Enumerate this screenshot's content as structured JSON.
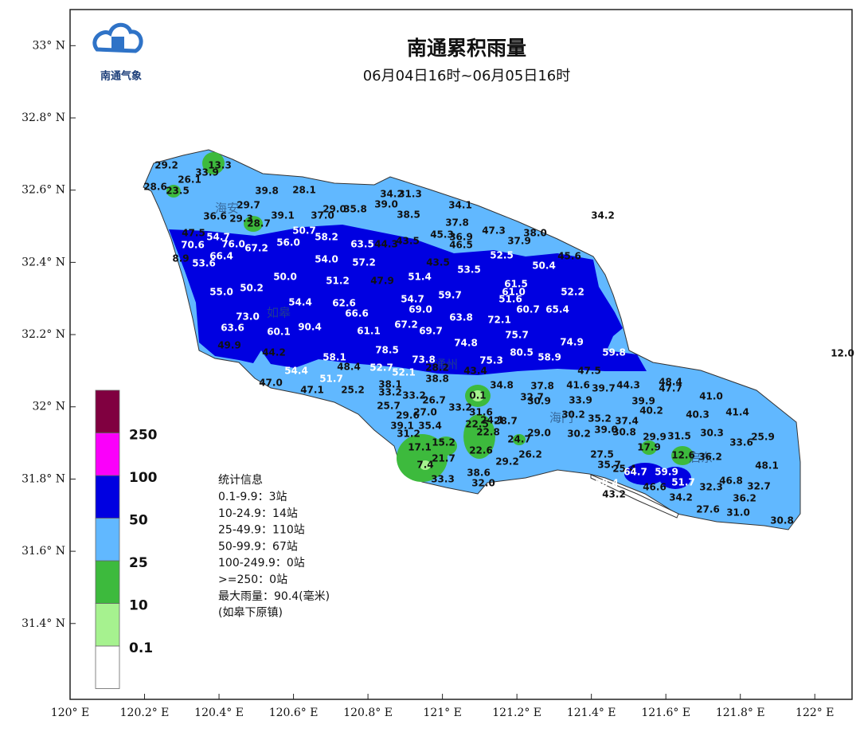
{
  "header": {
    "logo_text": "南通气象",
    "title": "南通累积雨量",
    "subtitle": "06月04日16时~06月05日16时"
  },
  "map": {
    "xlim": [
      120,
      122.1
    ],
    "ylim": [
      31.19,
      33.1
    ],
    "xticks": [
      {
        "value": 120,
        "label": "120° E"
      },
      {
        "value": 120.2,
        "label": "120.2° E"
      },
      {
        "value": 120.4,
        "label": "120.4° E"
      },
      {
        "value": 120.6,
        "label": "120.6° E"
      },
      {
        "value": 120.8,
        "label": "120.8° E"
      },
      {
        "value": 121,
        "label": "121° E"
      },
      {
        "value": 121.2,
        "label": "121.2° E"
      },
      {
        "value": 121.4,
        "label": "121.4° E"
      },
      {
        "value": 121.6,
        "label": "121.6° E"
      },
      {
        "value": 121.8,
        "label": "121.8° E"
      },
      {
        "value": 122,
        "label": "122° E"
      }
    ],
    "yticks": [
      {
        "value": 33,
        "label": "33° N"
      },
      {
        "value": 32.8,
        "label": "32.8° N"
      },
      {
        "value": 32.6,
        "label": "32.6° N"
      },
      {
        "value": 32.4,
        "label": "32.4° N"
      },
      {
        "value": 32.2,
        "label": "32.2° N"
      },
      {
        "value": 32,
        "label": "32° N"
      },
      {
        "value": 31.8,
        "label": "31.8° N"
      },
      {
        "value": 31.6,
        "label": "31.6° N"
      },
      {
        "value": 31.4,
        "label": "31.4° N"
      }
    ],
    "places": [
      "海安",
      "如皋",
      "通州",
      "海门",
      "启东"
    ],
    "stations": [
      "29.2",
      "26.1",
      "33.9",
      "13.3",
      "28.6",
      "23.5",
      "39.8",
      "28.1",
      "29.0",
      "35.8",
      "34.2",
      "31.3",
      "39.0",
      "34.1",
      "34.2",
      "38.5",
      "29.7",
      "36.6",
      "29.3",
      "28.7",
      "39.1",
      "37.0",
      "37.8",
      "45.3",
      "36.9",
      "46.5",
      "47.3",
      "38.0",
      "37.9",
      "43.5",
      "44.3",
      "47.5",
      "54.7",
      "70.6",
      "76.0",
      "67.2",
      "56.0",
      "50.7",
      "58.2",
      "63.5",
      "66.4",
      "8.9",
      "53.6",
      "54.0",
      "57.2",
      "43.5",
      "52.5",
      "50.4",
      "45.6",
      "53.5",
      "51.4",
      "50.0",
      "50.2",
      "51.2",
      "47.9",
      "55.0",
      "61.5",
      "61.0",
      "51.6",
      "52.2",
      "54.4",
      "62.6",
      "54.7",
      "59.7",
      "69.0",
      "73.0",
      "90.4",
      "66.6",
      "60.7",
      "65.4",
      "63.6",
      "60.1",
      "61.1",
      "67.2",
      "69.7",
      "63.8",
      "72.1",
      "75.7",
      "74.9",
      "74.8",
      "78.5",
      "80.5",
      "58.9",
      "49.9",
      "44.2",
      "58.1",
      "75.3",
      "73.8",
      "28.2",
      "59.8",
      "52.7",
      "52.1",
      "48.4",
      "54.4",
      "51.7",
      "43.4",
      "47.5",
      "47.0",
      "47.1",
      "38.8",
      "38.1",
      "0.1",
      "34.8",
      "37.8",
      "41.6",
      "39.7",
      "44.3",
      "48.4",
      "47.7",
      "41.0",
      "39.9",
      "32.7",
      "30.9",
      "33.9",
      "25.2",
      "33.2",
      "33.2",
      "26.7",
      "25.7",
      "33.2",
      "31.6",
      "24.1",
      "28.7",
      "29.6",
      "27.0",
      "30.2",
      "35.2",
      "40.2",
      "40.3",
      "41.4",
      "37.4",
      "39.0",
      "22.5",
      "22.8",
      "39.1",
      "35.4",
      "31.2",
      "29.0",
      "30.2",
      "30.8",
      "29.9",
      "31.5",
      "30.3",
      "25.9",
      "33.6",
      "24.7",
      "17.1",
      "15.2",
      "22.6",
      "17.9",
      "26.2",
      "27.5",
      "12.6",
      "36.2",
      "48.1",
      "21.7",
      "7.4",
      "29.2",
      "25.4",
      "35.7",
      "38.6",
      "33.3",
      "32.0",
      "64.7",
      "59.9",
      "58.4",
      "46.8",
      "32.7",
      "46.6",
      "51.7",
      "32.3",
      "36.2",
      "34.2",
      "43.2",
      "27.6",
      "31.0",
      "30.8",
      "12.0"
    ]
  },
  "legend": {
    "levels": [
      0.1,
      10,
      25,
      50,
      100,
      250
    ],
    "colors": [
      "#ffffff",
      "#a6f28f",
      "#3dba3d",
      "#61b8ff",
      "#0000e1",
      "#fa00fa",
      "#800040"
    ]
  },
  "stats": {
    "heading": "统计信息",
    "lines": [
      "0.1-9.9：3站",
      "10-24.9：14站",
      "25-49.9：110站",
      "50-99.9：67站",
      "100-249.9：0站",
      ">=250：0站",
      "最大雨量：90.4(毫米)",
      "(如皋下原镇)"
    ]
  }
}
